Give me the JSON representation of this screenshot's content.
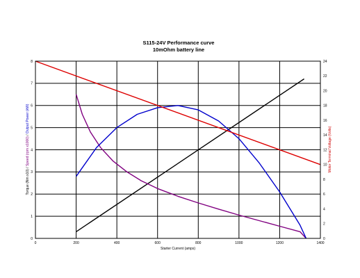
{
  "chart_data": {
    "type": "line",
    "title": "S115-24V Performance  curve",
    "subtitle": "10mOhm battery line",
    "xlabel": "Starter Current (amps)",
    "ylabel_left_parts": [
      {
        "text": "Torque (Nm x10) / ",
        "color": "#000000"
      },
      {
        "text": "Speed (rpm x1000)",
        "color": "#800080"
      },
      {
        "text": " / ",
        "color": "#000000"
      },
      {
        "text": "Output Power (kW)",
        "color": "#0000cc"
      }
    ],
    "ylabel_right": "Motor Terminal Voltage (Volts)",
    "xlim": [
      0,
      1400
    ],
    "ylim_left": [
      0,
      8
    ],
    "ylim_right": [
      0,
      24
    ],
    "x_ticks": [
      0,
      200,
      400,
      600,
      800,
      1000,
      1200,
      1400
    ],
    "y_left_ticks": [
      0,
      1,
      2,
      3,
      4,
      5,
      6,
      7,
      8
    ],
    "y_right_ticks": [
      0,
      2,
      4,
      6,
      8,
      10,
      12,
      14,
      16,
      18,
      20,
      22,
      24
    ],
    "grid": true,
    "series": [
      {
        "color": "#000000",
        "axis": "left",
        "points": [
          [
            200,
            0.3
          ],
          [
            1320,
            7.2
          ]
        ]
      },
      {
        "color": "#800080",
        "axis": "left",
        "points": [
          [
            200,
            6.5
          ],
          [
            230,
            5.6
          ],
          [
            270,
            4.8
          ],
          [
            320,
            4.1
          ],
          [
            380,
            3.5
          ],
          [
            450,
            3.0
          ],
          [
            520,
            2.6
          ],
          [
            600,
            2.25
          ],
          [
            700,
            1.9
          ],
          [
            800,
            1.6
          ],
          [
            900,
            1.32
          ],
          [
            1000,
            1.05
          ],
          [
            1100,
            0.8
          ],
          [
            1200,
            0.55
          ],
          [
            1300,
            0.3
          ],
          [
            1330,
            0.0
          ]
        ]
      },
      {
        "color": "#0000cc",
        "axis": "left",
        "points": [
          [
            200,
            2.8
          ],
          [
            300,
            4.1
          ],
          [
            400,
            5.0
          ],
          [
            500,
            5.6
          ],
          [
            600,
            5.9
          ],
          [
            700,
            6.0
          ],
          [
            800,
            5.8
          ],
          [
            900,
            5.3
          ],
          [
            1000,
            4.5
          ],
          [
            1100,
            3.4
          ],
          [
            1200,
            2.1
          ],
          [
            1300,
            0.6
          ],
          [
            1330,
            0.0
          ]
        ]
      },
      {
        "color": "#dd0000",
        "axis": "right",
        "points": [
          [
            0,
            24.0
          ],
          [
            1400,
            10.0
          ]
        ]
      }
    ]
  }
}
